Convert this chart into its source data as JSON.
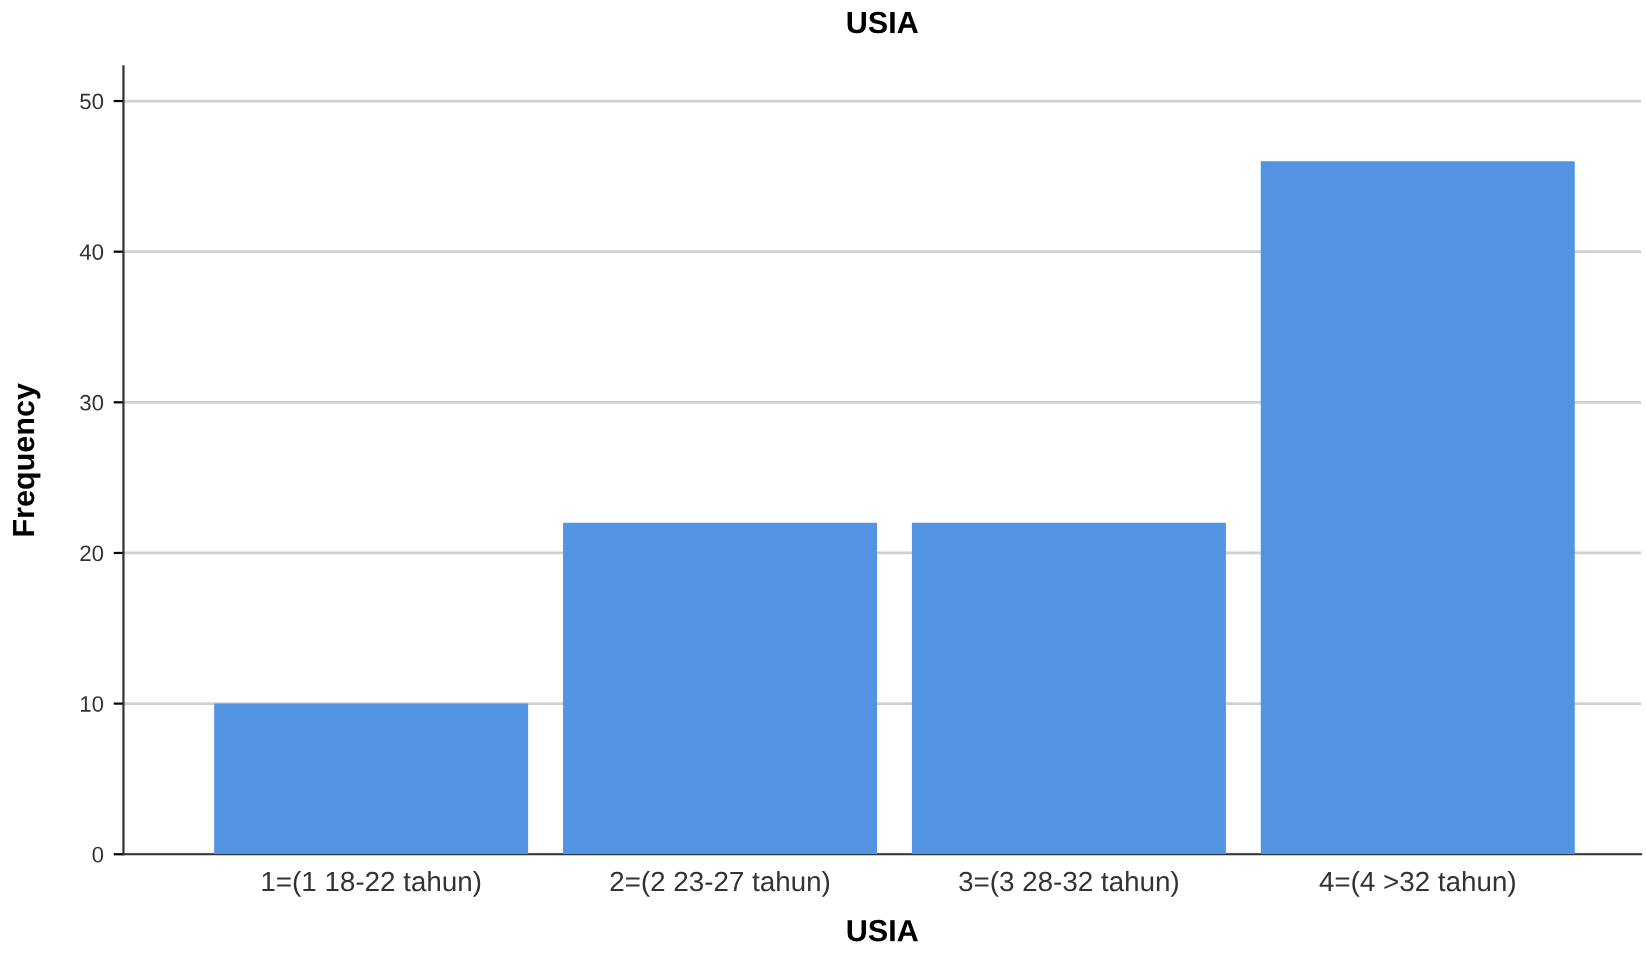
{
  "chart_data": {
    "type": "bar",
    "title": "USIA",
    "xlabel": "USIA",
    "ylabel": "Frequency",
    "categories": [
      "1=(1 18-22 tahun)",
      "2=(2 23-27 tahun)",
      "3=(3 28-32 tahun)",
      "4=(4 >32 tahun)"
    ],
    "values": [
      10,
      22,
      22,
      46
    ],
    "color": "#5294e2",
    "ylim": [
      0,
      52.3
    ],
    "yticks": [
      0,
      10,
      20,
      30,
      40,
      50
    ],
    "grid": "y"
  }
}
